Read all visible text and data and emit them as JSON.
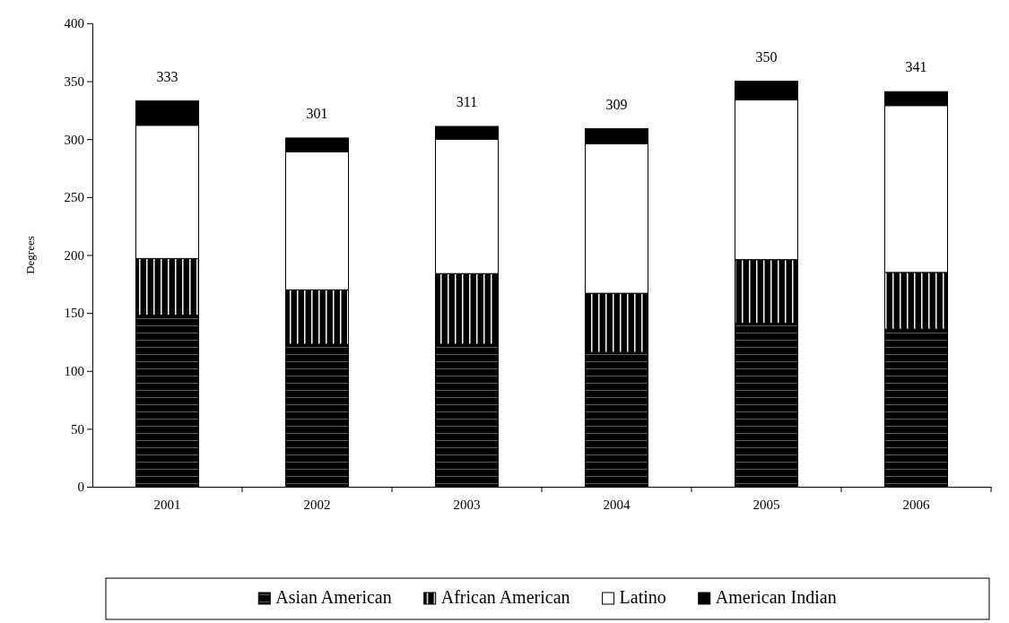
{
  "chart_data": {
    "type": "bar",
    "stacked": true,
    "ylabel": "Degrees",
    "categories": [
      "2001",
      "2002",
      "2003",
      "2004",
      "2005",
      "2006"
    ],
    "series": [
      {
        "name": "Asian American",
        "color": "#000000",
        "values": [
          148,
          123,
          123,
          116,
          141,
          136
        ]
      },
      {
        "name": "African American",
        "color": "#000000",
        "values": [
          49,
          47,
          61,
          51,
          55,
          49
        ]
      },
      {
        "name": "Latino",
        "color": "#ffffff",
        "values": [
          115,
          119,
          116,
          129,
          138,
          144
        ]
      },
      {
        "name": "American Indian",
        "color": "#000000",
        "values": [
          21,
          12,
          11,
          13,
          16,
          12
        ]
      }
    ],
    "totals": [
      "333",
      "301",
      "311",
      "309",
      "350",
      "341"
    ],
    "ylim": [
      0,
      400
    ],
    "yticks": [
      0,
      50,
      100,
      150,
      200,
      250,
      300,
      350,
      400
    ],
    "grid": false,
    "legend": "bottom"
  }
}
